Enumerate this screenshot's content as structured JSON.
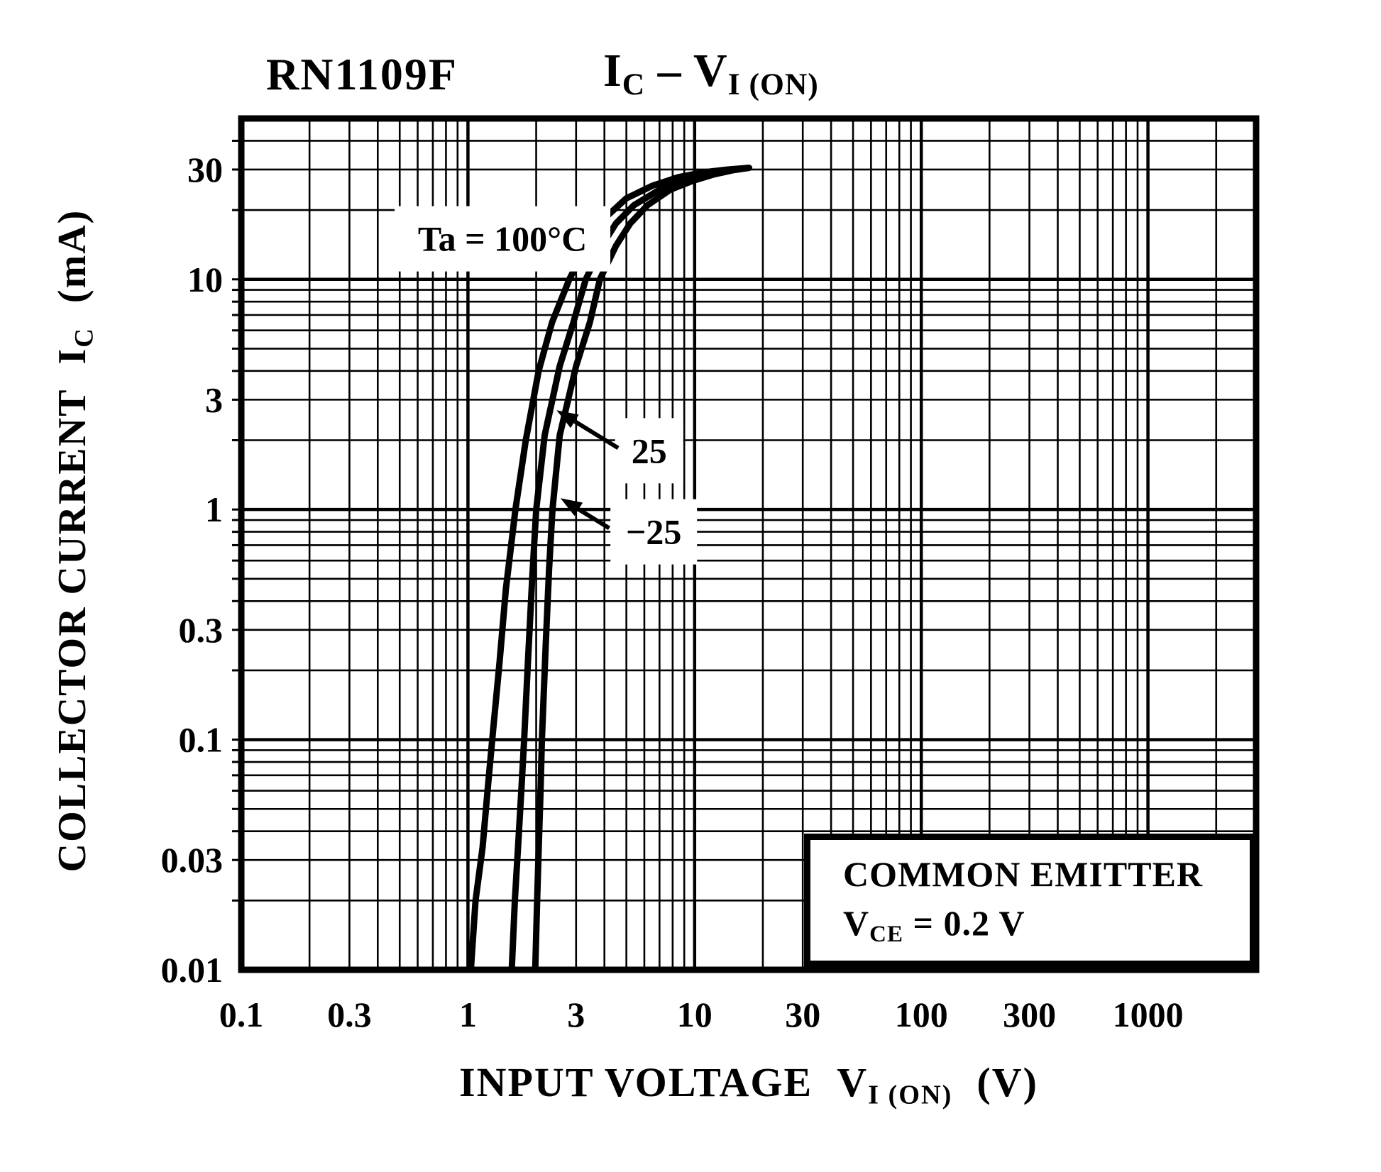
{
  "header": {
    "part_number": "RN1109F",
    "graph_title": {
      "i": "I",
      "i_sub": "C",
      "dash": " – ",
      "v": "V",
      "v_sub": "I (ON)"
    }
  },
  "axes": {
    "y_title": {
      "main": "COLLECTOR CURRENT",
      "i": "I",
      "i_sub": "C",
      "unit": "(mA)"
    },
    "x_title": {
      "main": "INPUT VOLTAGE",
      "v": "V",
      "v_sub": "I (ON)",
      "unit": "(V)"
    }
  },
  "legend": {
    "line1": "COMMON EMITTER",
    "v": "V",
    "v_sub": "CE",
    "value": " = 0.2 V"
  },
  "chart_data": {
    "type": "line",
    "title": "RN1109F  IC – VI(ON)",
    "xlabel": "INPUT VOLTAGE VI(ON) (V)",
    "ylabel": "COLLECTOR CURRENT IC (mA)",
    "x_scale": "log",
    "y_scale": "log",
    "xlim": [
      0.1,
      3000
    ],
    "ylim": [
      0.01,
      50
    ],
    "grid": "log-log full minor grid",
    "legend_position": "bottom-right box",
    "x_ticks": [
      "0.1",
      "0.3",
      "1",
      "3",
      "10",
      "30",
      "100",
      "300",
      "1000"
    ],
    "y_ticks": [
      "30",
      "10",
      "3",
      "1",
      "0.3",
      "0.1",
      "0.03",
      "0.01"
    ],
    "condition_lines": [
      "COMMON EMITTER",
      "VCE = 0.2 V"
    ],
    "series": [
      {
        "name": "Ta = 100°C",
        "points": [
          [
            1.03,
            0.01
          ],
          [
            1.08,
            0.02
          ],
          [
            1.16,
            0.034
          ],
          [
            1.22,
            0.06
          ],
          [
            1.28,
            0.1
          ],
          [
            1.38,
            0.22
          ],
          [
            1.47,
            0.45
          ],
          [
            1.62,
            1.0
          ],
          [
            1.8,
            2.0
          ],
          [
            2.05,
            4.0
          ],
          [
            2.35,
            6.5
          ],
          [
            2.8,
            10
          ],
          [
            3.45,
            15
          ],
          [
            4.1,
            18.8
          ],
          [
            5.0,
            22.5
          ],
          [
            6.5,
            25.5
          ],
          [
            8.5,
            27.8
          ],
          [
            11.0,
            29.2
          ],
          [
            14.0,
            30.0
          ],
          [
            17.3,
            30.5
          ]
        ]
      },
      {
        "name": "Ta = 25°C",
        "points": [
          [
            1.56,
            0.01
          ],
          [
            1.61,
            0.02
          ],
          [
            1.66,
            0.033
          ],
          [
            1.72,
            0.06
          ],
          [
            1.77,
            0.1
          ],
          [
            1.84,
            0.22
          ],
          [
            1.92,
            0.5
          ],
          [
            2.0,
            1.0
          ],
          [
            2.18,
            2.1
          ],
          [
            2.54,
            4.2
          ],
          [
            2.92,
            6.5
          ],
          [
            3.31,
            10
          ],
          [
            3.9,
            14
          ],
          [
            4.5,
            17.5
          ],
          [
            5.4,
            21
          ],
          [
            7.0,
            24.5
          ],
          [
            9.0,
            27
          ],
          [
            11.5,
            28.8
          ],
          [
            14.3,
            29.9
          ],
          [
            17.3,
            30.5
          ]
        ]
      },
      {
        "name": "Ta = −25°C",
        "points": [
          [
            1.98,
            0.01
          ],
          [
            2.02,
            0.02
          ],
          [
            2.05,
            0.033
          ],
          [
            2.09,
            0.06
          ],
          [
            2.12,
            0.1
          ],
          [
            2.2,
            0.25
          ],
          [
            2.28,
            0.55
          ],
          [
            2.36,
            1.0
          ],
          [
            2.54,
            2.1
          ],
          [
            3.0,
            4.2
          ],
          [
            3.45,
            6.5
          ],
          [
            3.82,
            10
          ],
          [
            4.5,
            14
          ],
          [
            5.2,
            17.5
          ],
          [
            6.2,
            21
          ],
          [
            7.8,
            24.5
          ],
          [
            9.8,
            26.8
          ],
          [
            12.2,
            28.6
          ],
          [
            14.8,
            29.8
          ],
          [
            17.4,
            30.5
          ]
        ]
      }
    ],
    "annotations": [
      {
        "id": "ta-label",
        "text": "Ta = 100°C",
        "anchor": {
          "v": 1.42,
          "i": 15
        }
      },
      {
        "id": "label-25",
        "text": "25",
        "anchor": {
          "v": 6.3,
          "i": 1.8
        },
        "arrow": {
          "from": {
            "v": 4.6,
            "i": 1.85
          },
          "to": {
            "v": 2.46,
            "i": 2.7
          }
        }
      },
      {
        "id": "label-minus-25",
        "text": "−25",
        "anchor": {
          "v": 6.6,
          "i": 0.8
        },
        "arrow": {
          "from": {
            "v": 4.2,
            "i": 0.83
          },
          "to": {
            "v": 2.56,
            "i": 1.12
          }
        }
      }
    ]
  }
}
